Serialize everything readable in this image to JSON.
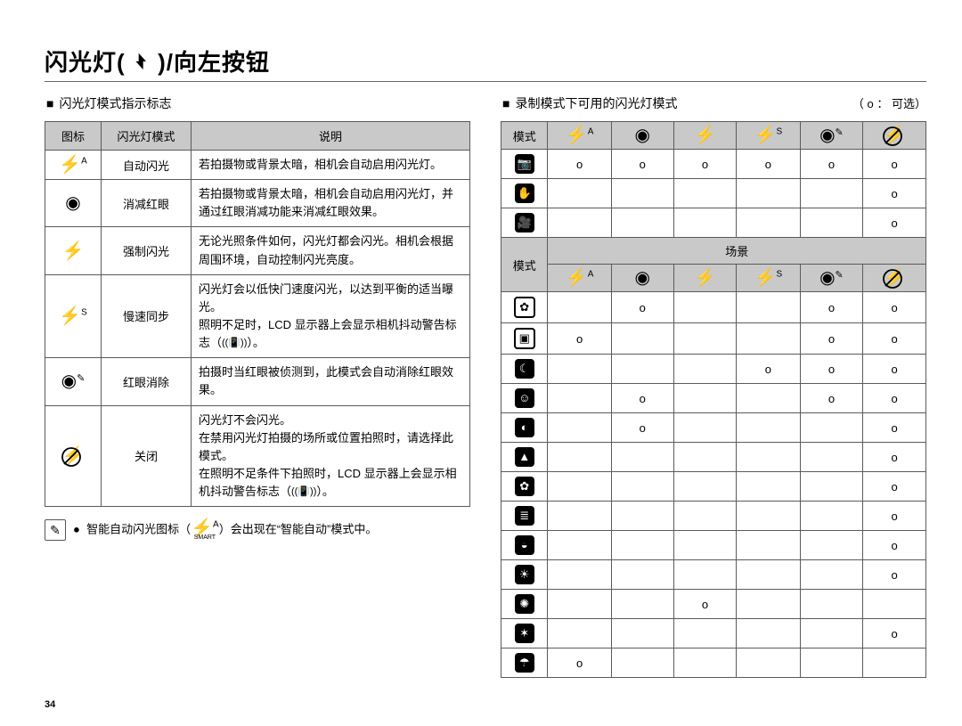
{
  "title_prefix": "闪光灯( ",
  "title_suffix": " )/向左按钮",
  "flash_glyph": "⚡",
  "left_heading": "闪光灯模式指示标志",
  "right_heading": "录制模式下可用的闪光灯模式",
  "legend": "（ o ： 可选）",
  "table1": {
    "headers": [
      "图标",
      "闪光灯模式",
      "说明"
    ],
    "rows": [
      {
        "icon": "flash-auto",
        "mode": "自动闪光",
        "desc": "若拍摄物或背景太暗，相机会自动启用闪光灯。"
      },
      {
        "icon": "redeye",
        "mode": "消减红眼",
        "desc": "若拍摄物或背景太暗，相机会自动启用闪光灯，并通过红眼消减功能来消减红眼效果。"
      },
      {
        "icon": "flash-on",
        "mode": "强制闪光",
        "desc": "无论光照条件如何，闪光灯都会闪光。相机会根据周围环境，自动控制闪光亮度。"
      },
      {
        "icon": "flash-slow",
        "mode": "慢速同步",
        "desc": "闪光灯会以低快门速度闪光，以达到平衡的适当曝光。\n照明不足时，LCD 显示器上会显示相机抖动警告标志（📳）。"
      },
      {
        "icon": "redeye-fix",
        "mode": "红眼消除",
        "desc": "拍摄时当红眼被侦测到，此模式会自动消除红眼效果。"
      },
      {
        "icon": "flash-off",
        "mode": "关闭",
        "desc": "闪光灯不会闪光。\n在禁用闪光灯拍摄的场所或位置拍照时，请选择此模式。\n在照明不足条件下拍照时，LCD 显示器上会显示相机抖动警告标志（📳）。"
      }
    ]
  },
  "note_text_1": "智能自动闪光图标（",
  "note_text_2": "）会出现在“智能自动”模式中。",
  "smart_label": "SMART",
  "table2": {
    "mode_label": "模式",
    "scene_label": "场景",
    "flash_cols": [
      "flash-auto",
      "redeye",
      "flash-on",
      "flash-slow",
      "redeye-fix",
      "flash-off"
    ],
    "top_rows": [
      {
        "icon": "camera",
        "cells": [
          "o",
          "o",
          "o",
          "o",
          "o",
          "o"
        ]
      },
      {
        "icon": "dual",
        "cells": [
          "",
          "",
          "",
          "",
          "",
          "o"
        ]
      },
      {
        "icon": "movie",
        "cells": [
          "",
          "",
          "",
          "",
          "",
          "o"
        ]
      }
    ],
    "scene_rows": [
      {
        "icon": "scene-beauty",
        "cells": [
          "",
          "o",
          "",
          "",
          "o",
          "o"
        ]
      },
      {
        "icon": "scene-guide",
        "cells": [
          "o",
          "",
          "",
          "",
          "o",
          "o"
        ]
      },
      {
        "icon": "scene-night",
        "cells": [
          "",
          "",
          "",
          "o",
          "o",
          "o"
        ]
      },
      {
        "icon": "scene-portrait",
        "cells": [
          "",
          "o",
          "",
          "",
          "o",
          "o"
        ]
      },
      {
        "icon": "scene-children",
        "cells": [
          "",
          "o",
          "",
          "",
          "",
          "o"
        ]
      },
      {
        "icon": "scene-landscape",
        "cells": [
          "",
          "",
          "",
          "",
          "",
          "o"
        ]
      },
      {
        "icon": "scene-closeup",
        "cells": [
          "",
          "",
          "",
          "",
          "",
          "o"
        ]
      },
      {
        "icon": "scene-text",
        "cells": [
          "",
          "",
          "",
          "",
          "",
          "o"
        ]
      },
      {
        "icon": "scene-sunset",
        "cells": [
          "",
          "",
          "",
          "",
          "",
          "o"
        ]
      },
      {
        "icon": "scene-dawn",
        "cells": [
          "",
          "",
          "",
          "",
          "",
          "o"
        ]
      },
      {
        "icon": "scene-backlight",
        "cells": [
          "",
          "",
          "o",
          "",
          "",
          ""
        ]
      },
      {
        "icon": "scene-firework",
        "cells": [
          "",
          "",
          "",
          "",
          "",
          "o"
        ]
      },
      {
        "icon": "scene-beach",
        "cells": [
          "o",
          "",
          "",
          "",
          "",
          ""
        ]
      }
    ]
  },
  "page_number": "34",
  "bullet": "■",
  "list_bullet": "●"
}
